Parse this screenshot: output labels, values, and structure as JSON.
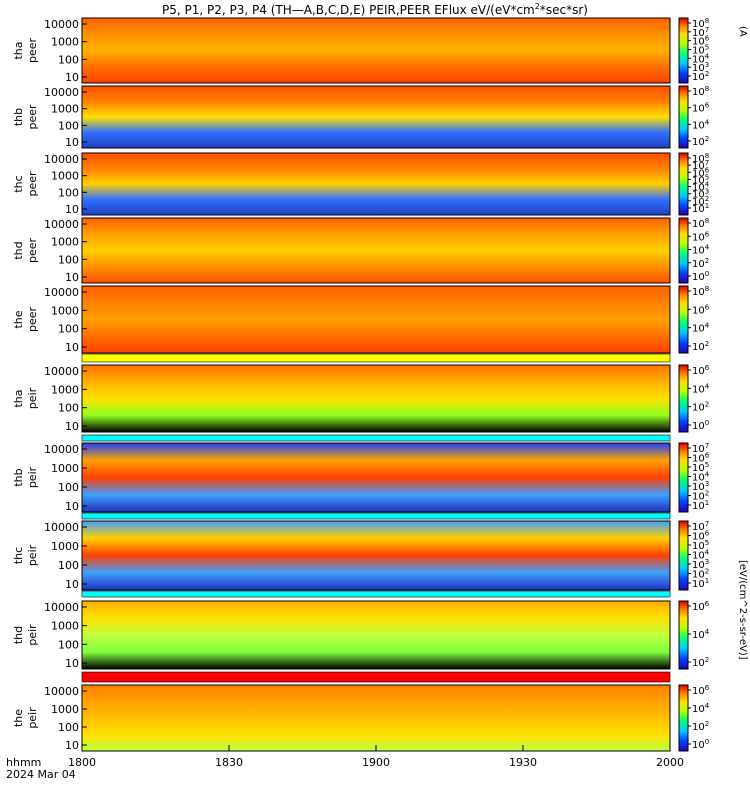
{
  "chart_data": {
    "type": "heatmap",
    "title_parts": [
      "P5, P1, P2, P3, P4 (TH—A,B,C,D,E) PEIR,PEER EFlux eV/(eV*cm",
      "2",
      "*sec*sr)"
    ],
    "x_axis": {
      "label_line1": "hhmm",
      "label_line2": "2024 Mar 04",
      "ticks": [
        "1800",
        "1830",
        "1900",
        "1930",
        "2000"
      ]
    },
    "colorbar_labels": [
      "(A",
      "[eV/(cm^2-s-sr-eV)]"
    ],
    "panels": [
      {
        "probe": "tha",
        "species": "peer",
        "yticks": [
          "10000",
          "1000",
          "100",
          "10"
        ],
        "cbar_ticks": [
          {
            "b": "10",
            "e": "8"
          },
          {
            "b": "10",
            "e": "7"
          },
          {
            "b": "10",
            "e": "6"
          },
          {
            "b": "10",
            "e": "5"
          },
          {
            "b": "10",
            "e": "4"
          },
          {
            "b": "10",
            "e": "3"
          },
          {
            "b": "10",
            "e": "2"
          }
        ]
      },
      {
        "probe": "thb",
        "species": "peer",
        "yticks": [
          "10000",
          "1000",
          "100",
          "10"
        ],
        "cbar_ticks": [
          {
            "b": "10",
            "e": "8"
          },
          {
            "b": "10",
            "e": "6"
          },
          {
            "b": "10",
            "e": "4"
          },
          {
            "b": "10",
            "e": "2"
          }
        ]
      },
      {
        "probe": "thc",
        "species": "peer",
        "yticks": [
          "10000",
          "1000",
          "100",
          "10"
        ],
        "cbar_ticks": [
          {
            "b": "10",
            "e": "8"
          },
          {
            "b": "10",
            "e": "7"
          },
          {
            "b": "10",
            "e": "6"
          },
          {
            "b": "10",
            "e": "5"
          },
          {
            "b": "10",
            "e": "4"
          },
          {
            "b": "10",
            "e": "3"
          },
          {
            "b": "10",
            "e": "2"
          },
          {
            "b": "10",
            "e": "1"
          }
        ]
      },
      {
        "probe": "thd",
        "species": "peer",
        "yticks": [
          "10000",
          "1000",
          "100",
          "10"
        ],
        "cbar_ticks": [
          {
            "b": "10",
            "e": "8"
          },
          {
            "b": "10",
            "e": "6"
          },
          {
            "b": "10",
            "e": "4"
          },
          {
            "b": "10",
            "e": "2"
          },
          {
            "b": "10",
            "e": "0"
          }
        ]
      },
      {
        "probe": "the",
        "species": "peer",
        "yticks": [
          "10000",
          "1000",
          "100",
          "10"
        ],
        "cbar_ticks": [
          {
            "b": "10",
            "e": "8"
          },
          {
            "b": "10",
            "e": "6"
          },
          {
            "b": "10",
            "e": "4"
          },
          {
            "b": "10",
            "e": "2"
          }
        ]
      },
      {
        "probe": "tha",
        "species": "peir",
        "yticks": [
          "10000",
          "1000",
          "100",
          "10"
        ],
        "cbar_ticks": [
          {
            "b": "10",
            "e": "6"
          },
          {
            "b": "10",
            "e": "4"
          },
          {
            "b": "10",
            "e": "2"
          },
          {
            "b": "10",
            "e": "0"
          }
        ]
      },
      {
        "probe": "thb",
        "species": "peir",
        "yticks": [
          "10000",
          "1000",
          "100",
          "10"
        ],
        "cbar_ticks": [
          {
            "b": "10",
            "e": "7"
          },
          {
            "b": "10",
            "e": "6"
          },
          {
            "b": "10",
            "e": "5"
          },
          {
            "b": "10",
            "e": "4"
          },
          {
            "b": "10",
            "e": "3"
          },
          {
            "b": "10",
            "e": "2"
          },
          {
            "b": "10",
            "e": "1"
          }
        ]
      },
      {
        "probe": "thc",
        "species": "peir",
        "yticks": [
          "10000",
          "1000",
          "100",
          "10"
        ],
        "cbar_ticks": [
          {
            "b": "10",
            "e": "7"
          },
          {
            "b": "10",
            "e": "6"
          },
          {
            "b": "10",
            "e": "5"
          },
          {
            "b": "10",
            "e": "4"
          },
          {
            "b": "10",
            "e": "3"
          },
          {
            "b": "10",
            "e": "2"
          },
          {
            "b": "10",
            "e": "1"
          }
        ]
      },
      {
        "probe": "thd",
        "species": "peir",
        "yticks": [
          "10000",
          "1000",
          "100",
          "10"
        ],
        "cbar_ticks": [
          {
            "b": "10",
            "e": "6"
          },
          {
            "b": "10",
            "e": "4"
          },
          {
            "b": "10",
            "e": "2"
          }
        ]
      },
      {
        "probe": "the",
        "species": "peir",
        "yticks": [
          "10000",
          "1000",
          "100",
          "10"
        ],
        "cbar_ticks": [
          {
            "b": "10",
            "e": "6"
          },
          {
            "b": "10",
            "e": "4"
          },
          {
            "b": "10",
            "e": "2"
          },
          {
            "b": "10",
            "e": "0"
          }
        ]
      }
    ]
  }
}
